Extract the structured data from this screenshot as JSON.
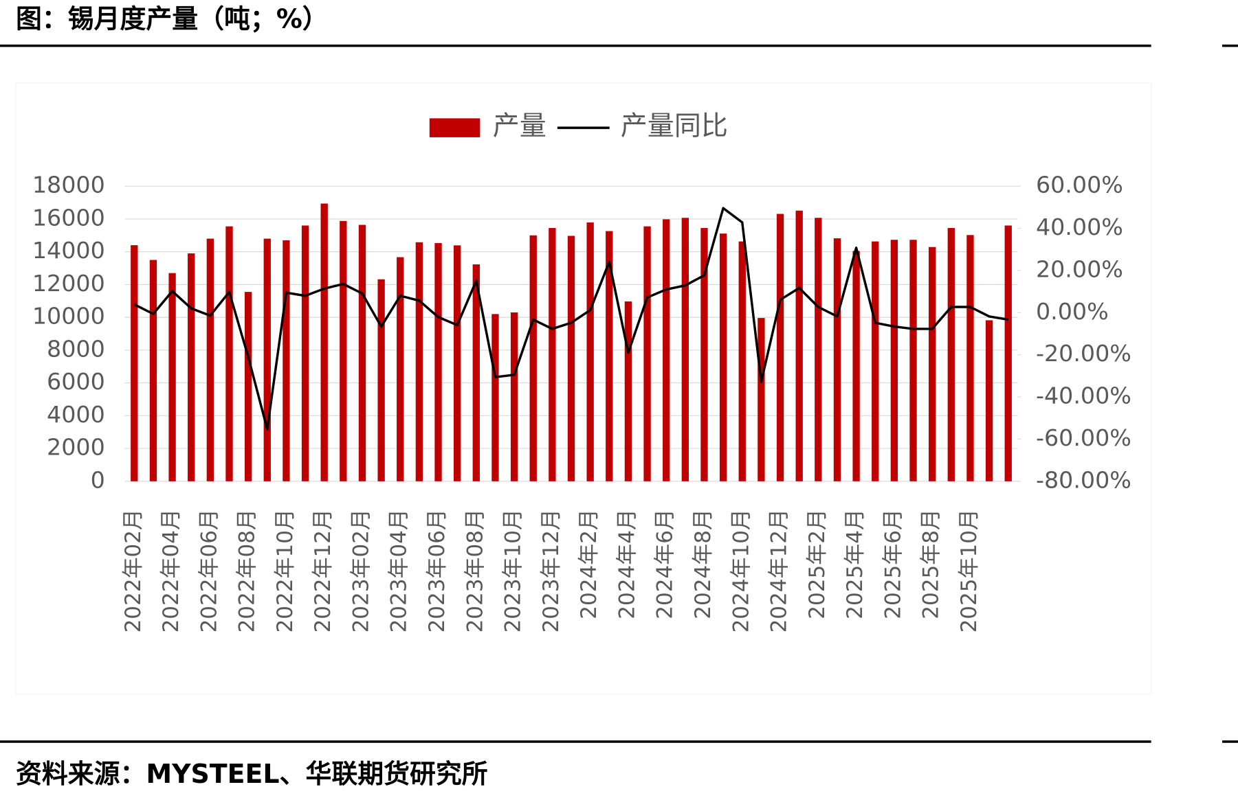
{
  "chart_data": {
    "type": "bar_line",
    "title": "图：锡月度产量（吨；%）",
    "source": "资料来源：MYSTEEL、华联期货研究所",
    "categories": [
      "2022年02月",
      null,
      "2022年04月",
      null,
      "2022年06月",
      null,
      "2022年08月",
      null,
      "2022年10月",
      null,
      "2022年12月",
      null,
      "2023年02月",
      null,
      "2023年04月",
      null,
      "2023年06月",
      null,
      "2023年08月",
      null,
      "2023年10月",
      null,
      "2023年12月",
      null,
      "2024年2月",
      null,
      "2024年4月",
      null,
      "2024年6月",
      null,
      "2024年8月",
      null,
      "2024年10月",
      null,
      "2024年12月",
      null,
      "2025年2月",
      null,
      "2025年4月",
      null,
      "2025年6月",
      null,
      "2025年8月",
      null,
      "2025年10月",
      null,
      null
    ],
    "series": [
      {
        "name": "产量",
        "type": "bar",
        "color": "#c00000",
        "values": [
          14400,
          13500,
          12700,
          13900,
          14800,
          15550,
          11550,
          14800,
          14700,
          15600,
          16940,
          15880,
          15640,
          12320,
          13670,
          14580,
          14530,
          14390,
          13230,
          10200,
          10300,
          15000,
          15450,
          14970,
          15790,
          15260,
          10970,
          15550,
          15980,
          16070,
          15450,
          15110,
          14630,
          9960,
          16310,
          16510,
          16070,
          14820,
          14050,
          14630,
          14730,
          14730,
          14290,
          15450,
          15020,
          9820,
          15600
        ]
      },
      {
        "name": "产量同比",
        "type": "line",
        "color": "#000000",
        "axis": "y2",
        "values": [
          3.9,
          -0.6,
          10.2,
          2,
          -1.4,
          9.8,
          -21,
          -55.3,
          9.5,
          8,
          11.4,
          13.6,
          9.1,
          -6.6,
          8,
          5.7,
          -2.1,
          -5.9,
          15.1,
          -30.6,
          -29.5,
          -3.3,
          -7.7,
          -4.8,
          1.2,
          24.1,
          -19,
          7.2,
          11,
          12.9,
          17.7,
          49.6,
          42.8,
          -32.8,
          6.1,
          11.7,
          2.7,
          -1.8,
          30.8,
          -4.8,
          -6.6,
          -7.7,
          -7.7,
          2.7,
          2.7,
          -1.8,
          -3.3
        ]
      }
    ],
    "ylim": [
      0,
      18000
    ],
    "yticks": [
      0,
      2000,
      4000,
      6000,
      8000,
      10000,
      12000,
      14000,
      16000,
      18000
    ],
    "y2lim": [
      -80,
      60
    ],
    "y2ticks": [
      {
        "value": -80,
        "label": "-80.00%"
      },
      {
        "value": -60,
        "label": "-60.00%"
      },
      {
        "value": -40,
        "label": "-40.00%"
      },
      {
        "value": -20,
        "label": "-20.00%"
      },
      {
        "value": 0,
        "label": "0.00%"
      },
      {
        "value": 20,
        "label": "20.00%"
      },
      {
        "value": 40,
        "label": "40.00%"
      },
      {
        "value": 60,
        "label": "60.00%"
      }
    ],
    "grid": true,
    "legend": "top"
  }
}
